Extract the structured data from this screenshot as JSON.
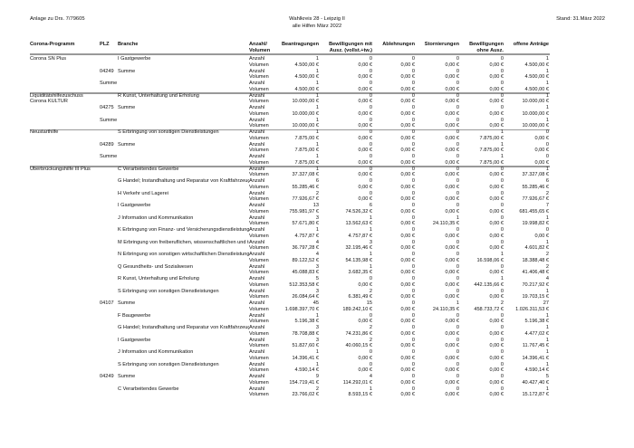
{
  "header": {
    "left": "Anlage zu Drs. 7/79605",
    "center_line1": "Wahlkreis 28 - Leipzig II",
    "center_line2": "alle Hilfen März 2022",
    "right": "Stand: 31.März 2022"
  },
  "columns": {
    "programm": "Corona-Programm",
    "plz": "PLZ",
    "branche": "Branche",
    "anzahl_volumen_1": "Anzahl/",
    "anzahl_volumen_2": "Volumen",
    "beantragungen": "Beantragungen",
    "bew_mit_1": "Bewilligungen mit",
    "bew_mit_2": "Ausz. (vollst.+tw.)",
    "ablehnungen": "Ablehnungen",
    "stornierungen": "Stornierungen",
    "bew_ohne_1": "Bewilligungen",
    "bew_ohne_2": "ohne Ausz.",
    "offene": "offene Anträge"
  },
  "labels": {
    "anzahl": "Anzahl",
    "volumen": "Volumen"
  },
  "groups": [
    {
      "program": [
        "Corona SN Plus"
      ],
      "rows": [
        {
          "plz": "",
          "branche": "I Gastgewerbe",
          "anzahl": [
            "1",
            "0",
            "0",
            "0",
            "0",
            "1"
          ],
          "volumen": [
            "4.500,00 €",
            "0,00 €",
            "0,00 €",
            "0,00 €",
            "0,00 €",
            "4.500,00 €"
          ]
        },
        {
          "plz": "04249",
          "branche": "Summe",
          "anzahl": [
            "1",
            "0",
            "0",
            "0",
            "0",
            "1"
          ],
          "volumen": [
            "4.500,00 €",
            "0,00 €",
            "0,00 €",
            "0,00 €",
            "0,00 €",
            "4.500,00 €"
          ]
        },
        {
          "plz": "Summe",
          "branche": "",
          "anzahl": [
            "1",
            "0",
            "0",
            "0",
            "0",
            "1"
          ],
          "volumen": [
            "4.500,00 €",
            "0,00 €",
            "0,00 €",
            "0,00 €",
            "0,00 €",
            "4.500,00 €"
          ]
        }
      ]
    },
    {
      "program": [
        "Liquiditätshilfezuschuss",
        "Corona KULTUR"
      ],
      "rows": [
        {
          "plz": "",
          "branche": "R Kunst, Unterhaltung und Erholung",
          "anzahl": [
            "1",
            "0",
            "0",
            "0",
            "0",
            "1"
          ],
          "volumen": [
            "10.000,00 €",
            "0,00 €",
            "0,00 €",
            "0,00 €",
            "0,00 €",
            "10.000,00 €"
          ]
        },
        {
          "plz": "04275",
          "branche": "Summe",
          "anzahl": [
            "1",
            "0",
            "0",
            "0",
            "0",
            "1"
          ],
          "volumen": [
            "10.000,00 €",
            "0,00 €",
            "0,00 €",
            "0,00 €",
            "0,00 €",
            "10.000,00 €"
          ]
        },
        {
          "plz": "Summe",
          "branche": "",
          "anzahl": [
            "1",
            "0",
            "0",
            "0",
            "0",
            "1"
          ],
          "volumen": [
            "10.000,00 €",
            "0,00 €",
            "0,00 €",
            "0,00 €",
            "0,00 €",
            "10.000,00 €"
          ]
        }
      ]
    },
    {
      "program": [
        "Neustarthilfe"
      ],
      "rows": [
        {
          "plz": "",
          "branche": "S Erbringung von sonstigen Dienstleistungen",
          "anzahl": [
            "1",
            "0",
            "0",
            "0",
            "1",
            "0"
          ],
          "volumen": [
            "7.875,00 €",
            "0,00 €",
            "0,00 €",
            "0,00 €",
            "7.875,00 €",
            "0,00 €"
          ]
        },
        {
          "plz": "04289",
          "branche": "Summe",
          "anzahl": [
            "1",
            "0",
            "0",
            "0",
            "1",
            "0"
          ],
          "volumen": [
            "7.875,00 €",
            "0,00 €",
            "0,00 €",
            "0,00 €",
            "7.875,00 €",
            "0,00 €"
          ]
        },
        {
          "plz": "Summe",
          "branche": "",
          "anzahl": [
            "1",
            "0",
            "0",
            "0",
            "1",
            "0"
          ],
          "volumen": [
            "7.875,00 €",
            "0,00 €",
            "0,00 €",
            "0,00 €",
            "7.875,00 €",
            "0,00 €"
          ]
        }
      ]
    },
    {
      "program": [
        "Überbrückungshilfe III Plus"
      ],
      "open": true,
      "rows": [
        {
          "plz": "",
          "branche": "C Verarbeitendes Gewerbe",
          "anzahl": [
            "1",
            "0",
            "0",
            "0",
            "0",
            "1"
          ],
          "volumen": [
            "37.327,08 €",
            "0,00 €",
            "0,00 €",
            "0,00 €",
            "0,00 €",
            "37.327,08 €"
          ]
        },
        {
          "plz": "",
          "branche": "G Handel; Instandhaltung und Reparatur von Kraftfahrzeuger",
          "anzahl": [
            "6",
            "0",
            "0",
            "0",
            "0",
            "6"
          ],
          "volumen": [
            "55.285,46 €",
            "0,00 €",
            "0,00 €",
            "0,00 €",
            "0,00 €",
            "55.285,46 €"
          ]
        },
        {
          "plz": "",
          "branche": "H Verkehr und Lagerei",
          "anzahl": [
            "2",
            "0",
            "0",
            "0",
            "0",
            "2"
          ],
          "volumen": [
            "77.926,67 €",
            "0,00 €",
            "0,00 €",
            "0,00 €",
            "0,00 €",
            "77.926,67 €"
          ]
        },
        {
          "plz": "",
          "branche": "I Gastgewerbe",
          "anzahl": [
            "13",
            "6",
            "0",
            "0",
            "0",
            "7"
          ],
          "volumen": [
            "755.981,97 €",
            "74.526,32 €",
            "0,00 €",
            "0,00 €",
            "0,00 €",
            "681.455,65 €"
          ]
        },
        {
          "plz": "",
          "branche": "J Information und Kommunikation",
          "anzahl": [
            "3",
            "1",
            "0",
            "1",
            "0",
            "1"
          ],
          "volumen": [
            "57.671,80 €",
            "13.562,63 €",
            "0,00 €",
            "24.110,35 €",
            "0,00 €",
            "19.998,82 €"
          ]
        },
        {
          "plz": "",
          "branche": "K Erbringung von Finanz- und Versicherungsdienstleistunger",
          "anzahl": [
            "1",
            "1",
            "0",
            "0",
            "0",
            "0"
          ],
          "volumen": [
            "4.757,87 €",
            "4.757,87 €",
            "0,00 €",
            "0,00 €",
            "0,00 €",
            "0,00 €"
          ]
        },
        {
          "plz": "",
          "branche": "M Erbringung von freiberuflichen, wissenschaftlichen und tec",
          "anzahl": [
            "4",
            "3",
            "0",
            "0",
            "0",
            "1"
          ],
          "volumen": [
            "36.797,28 €",
            "32.195,46 €",
            "0,00 €",
            "0,00 €",
            "0,00 €",
            "4.601,82 €"
          ]
        },
        {
          "plz": "",
          "branche": "N Erbringung von sonstigen wirtschaftlichen Dienstleistungen",
          "anzahl": [
            "4",
            "1",
            "0",
            "0",
            "1",
            "2"
          ],
          "volumen": [
            "89.122,52 €",
            "54.135,98 €",
            "0,00 €",
            "0,00 €",
            "16.598,06 €",
            "18.388,48 €"
          ]
        },
        {
          "plz": "",
          "branche": "Q Gesundheits- und Sozialwesen",
          "anzahl": [
            "3",
            "1",
            "0",
            "0",
            "0",
            "2"
          ],
          "volumen": [
            "45.088,83 €",
            "3.682,35 €",
            "0,00 €",
            "0,00 €",
            "0,00 €",
            "41.406,48 €"
          ]
        },
        {
          "plz": "",
          "branche": "R Kunst, Unterhaltung und Erholung",
          "anzahl": [
            "5",
            "0",
            "0",
            "0",
            "1",
            "4"
          ],
          "volumen": [
            "512.353,58 €",
            "0,00 €",
            "0,00 €",
            "0,00 €",
            "442.135,66 €",
            "70.217,92 €"
          ]
        },
        {
          "plz": "",
          "branche": "S Erbringung von sonstigen Dienstleistungen",
          "anzahl": [
            "3",
            "2",
            "0",
            "0",
            "0",
            "1"
          ],
          "volumen": [
            "26.084,64 €",
            "6.381,49 €",
            "0,00 €",
            "0,00 €",
            "0,00 €",
            "19.703,15 €"
          ]
        },
        {
          "plz": "04107",
          "branche": "Summe",
          "anzahl": [
            "45",
            "15",
            "0",
            "1",
            "2",
            "27"
          ],
          "volumen": [
            "1.698.397,70 €",
            "189.242,10 €",
            "0,00 €",
            "24.110,35 €",
            "458.733,72 €",
            "1.026.311,53 €"
          ]
        },
        {
          "plz": "",
          "branche": "F Baugewerbe",
          "anzahl": [
            "1",
            "0",
            "0",
            "0",
            "0",
            "1"
          ],
          "volumen": [
            "5.196,38 €",
            "0,00 €",
            "0,00 €",
            "0,00 €",
            "0,00 €",
            "5.196,38 €"
          ]
        },
        {
          "plz": "",
          "branche": "G Handel; Instandhaltung und Reparatur von Kraftfahrzeuger",
          "anzahl": [
            "3",
            "2",
            "0",
            "0",
            "0",
            "1"
          ],
          "volumen": [
            "78.708,88 €",
            "74.231,86 €",
            "0,00 €",
            "0,00 €",
            "0,00 €",
            "4.477,02 €"
          ]
        },
        {
          "plz": "",
          "branche": "I Gastgewerbe",
          "anzahl": [
            "3",
            "2",
            "0",
            "0",
            "0",
            "1"
          ],
          "volumen": [
            "51.827,60 €",
            "40.060,15 €",
            "0,00 €",
            "0,00 €",
            "0,00 €",
            "11.767,45 €"
          ]
        },
        {
          "plz": "",
          "branche": "J Information und Kommunikation",
          "anzahl": [
            "1",
            "0",
            "0",
            "0",
            "0",
            "1"
          ],
          "volumen": [
            "14.396,41 €",
            "0,00 €",
            "0,00 €",
            "0,00 €",
            "0,00 €",
            "14.396,41 €"
          ]
        },
        {
          "plz": "",
          "branche": "S Erbringung von sonstigen Dienstleistungen",
          "anzahl": [
            "1",
            "0",
            "0",
            "0",
            "0",
            "1"
          ],
          "volumen": [
            "4.590,14 €",
            "0,00 €",
            "0,00 €",
            "0,00 €",
            "0,00 €",
            "4.590,14 €"
          ]
        },
        {
          "plz": "04249",
          "branche": "Summe",
          "anzahl": [
            "9",
            "4",
            "0",
            "0",
            "0",
            "5"
          ],
          "volumen": [
            "154.719,41 €",
            "114.292,01 €",
            "0,00 €",
            "0,00 €",
            "0,00 €",
            "40.427,40 €"
          ]
        },
        {
          "plz": "",
          "branche": "C Verarbeitendes Gewerbe",
          "anzahl": [
            "2",
            "1",
            "0",
            "0",
            "0",
            "1"
          ],
          "volumen": [
            "23.766,02 €",
            "8.593,15 €",
            "0,00 €",
            "0,00 €",
            "0,00 €",
            "15.172,87 €"
          ]
        }
      ]
    }
  ]
}
